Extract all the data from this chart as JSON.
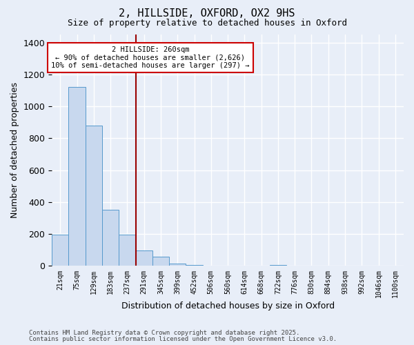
{
  "title1": "2, HILLSIDE, OXFORD, OX2 9HS",
  "title2": "Size of property relative to detached houses in Oxford",
  "xlabel": "Distribution of detached houses by size in Oxford",
  "ylabel": "Number of detached properties",
  "categories": [
    "21sqm",
    "75sqm",
    "129sqm",
    "183sqm",
    "237sqm",
    "291sqm",
    "345sqm",
    "399sqm",
    "452sqm",
    "506sqm",
    "560sqm",
    "614sqm",
    "668sqm",
    "722sqm",
    "776sqm",
    "830sqm",
    "884sqm",
    "938sqm",
    "992sqm",
    "1046sqm",
    "1100sqm"
  ],
  "values": [
    195,
    1120,
    880,
    350,
    195,
    95,
    60,
    15,
    8,
    0,
    0,
    0,
    0,
    8,
    0,
    0,
    0,
    0,
    0,
    0,
    0
  ],
  "bar_color": "#c8d8ee",
  "bar_edge_color": "#5599cc",
  "vline_x_index": 4.5,
  "vline_color": "#990000",
  "annotation_text": "2 HILLSIDE: 260sqm\n← 90% of detached houses are smaller (2,626)\n10% of semi-detached houses are larger (297) →",
  "annotation_box_color": "#ffffff",
  "annotation_box_edge": "#cc0000",
  "footer1": "Contains HM Land Registry data © Crown copyright and database right 2025.",
  "footer2": "Contains public sector information licensed under the Open Government Licence v3.0.",
  "background_color": "#e8eef8",
  "plot_bg_color": "#e8eef8",
  "grid_color": "#ffffff",
  "ylim": [
    0,
    1450
  ],
  "yticks": [
    0,
    200,
    400,
    600,
    800,
    1000,
    1200,
    1400
  ]
}
